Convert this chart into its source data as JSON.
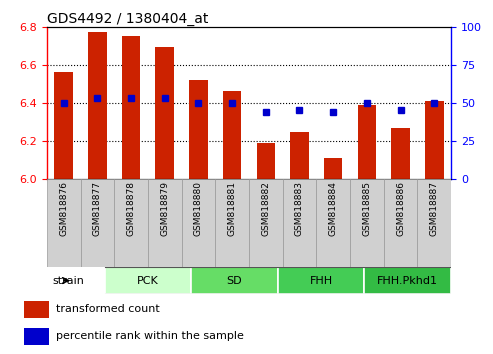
{
  "title": "GDS4492 / 1380404_at",
  "samples": [
    "GSM818876",
    "GSM818877",
    "GSM818878",
    "GSM818879",
    "GSM818880",
    "GSM818881",
    "GSM818882",
    "GSM818883",
    "GSM818884",
    "GSM818885",
    "GSM818886",
    "GSM818887"
  ],
  "bar_values": [
    6.56,
    6.77,
    6.75,
    6.69,
    6.52,
    6.46,
    6.19,
    6.245,
    6.11,
    6.39,
    6.265,
    6.41
  ],
  "percentile_values": [
    50,
    53,
    53,
    53,
    50,
    50,
    44,
    45,
    44,
    50,
    45,
    50
  ],
  "bar_color": "#cc2200",
  "percentile_color": "#0000cc",
  "ylim_left": [
    6.0,
    6.8
  ],
  "ylim_right": [
    0,
    100
  ],
  "yticks_left": [
    6.0,
    6.2,
    6.4,
    6.6,
    6.8
  ],
  "yticks_right": [
    0,
    25,
    50,
    75,
    100
  ],
  "groups": [
    {
      "label": "PCK",
      "start": 0,
      "end": 3,
      "color": "#ccffcc"
    },
    {
      "label": "SD",
      "start": 3,
      "end": 6,
      "color": "#66dd66"
    },
    {
      "label": "FHH",
      "start": 6,
      "end": 9,
      "color": "#44cc55"
    },
    {
      "label": "FHH.Pkhd1",
      "start": 9,
      "end": 12,
      "color": "#33bb44"
    }
  ],
  "xlabel": "strain",
  "legend_bar_label": "transformed count",
  "legend_pct_label": "percentile rank within the sample",
  "bar_bottom": 6.0,
  "grid_color": "#000000",
  "label_bg_color": "#d0d0d0",
  "label_edge_color": "#999999"
}
